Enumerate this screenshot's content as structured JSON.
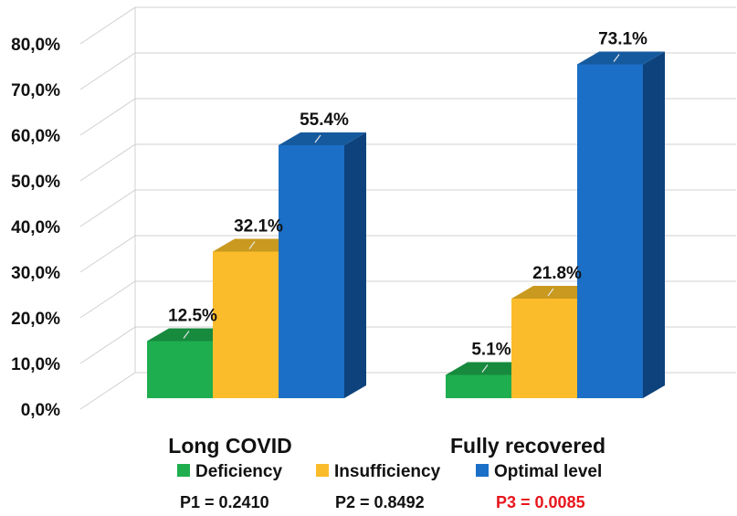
{
  "chart_data": {
    "type": "bar",
    "categories": [
      "Long COVID",
      "Fully recovered"
    ],
    "series": [
      {
        "name": "Deficiency",
        "values": [
          12.5,
          5.1
        ],
        "labels": [
          "12.5%",
          "5.1%"
        ],
        "color": "#1fae4f",
        "side": "#167a37",
        "top": "#178a3e"
      },
      {
        "name": "Insufficiency",
        "values": [
          32.1,
          21.8
        ],
        "labels": [
          "32.1%",
          "21.8%"
        ],
        "color": "#fbbc2c",
        "side": "#b8860e",
        "top": "#c99a1f"
      },
      {
        "name": "Optimal level",
        "values": [
          55.4,
          73.1
        ],
        "labels": [
          "55.4%",
          "73.1%"
        ],
        "color": "#1b6fc6",
        "side": "#0e427c",
        "top": "#165a9e"
      }
    ],
    "yticks": [
      "0,0%",
      "10,0%",
      "20,0%",
      "30,0%",
      "40,0%",
      "50,0%",
      "60,0%",
      "70,0%",
      "80,0%"
    ],
    "ylim": [
      0,
      80
    ],
    "grid": true,
    "legend_position": "bottom",
    "pvalues": [
      {
        "text": "P1 = 0.2410",
        "color": "#111111"
      },
      {
        "text": "P2 = 0.8492",
        "color": "#111111"
      },
      {
        "text": "P3 = 0.0085",
        "color": "#e8161c"
      }
    ]
  }
}
